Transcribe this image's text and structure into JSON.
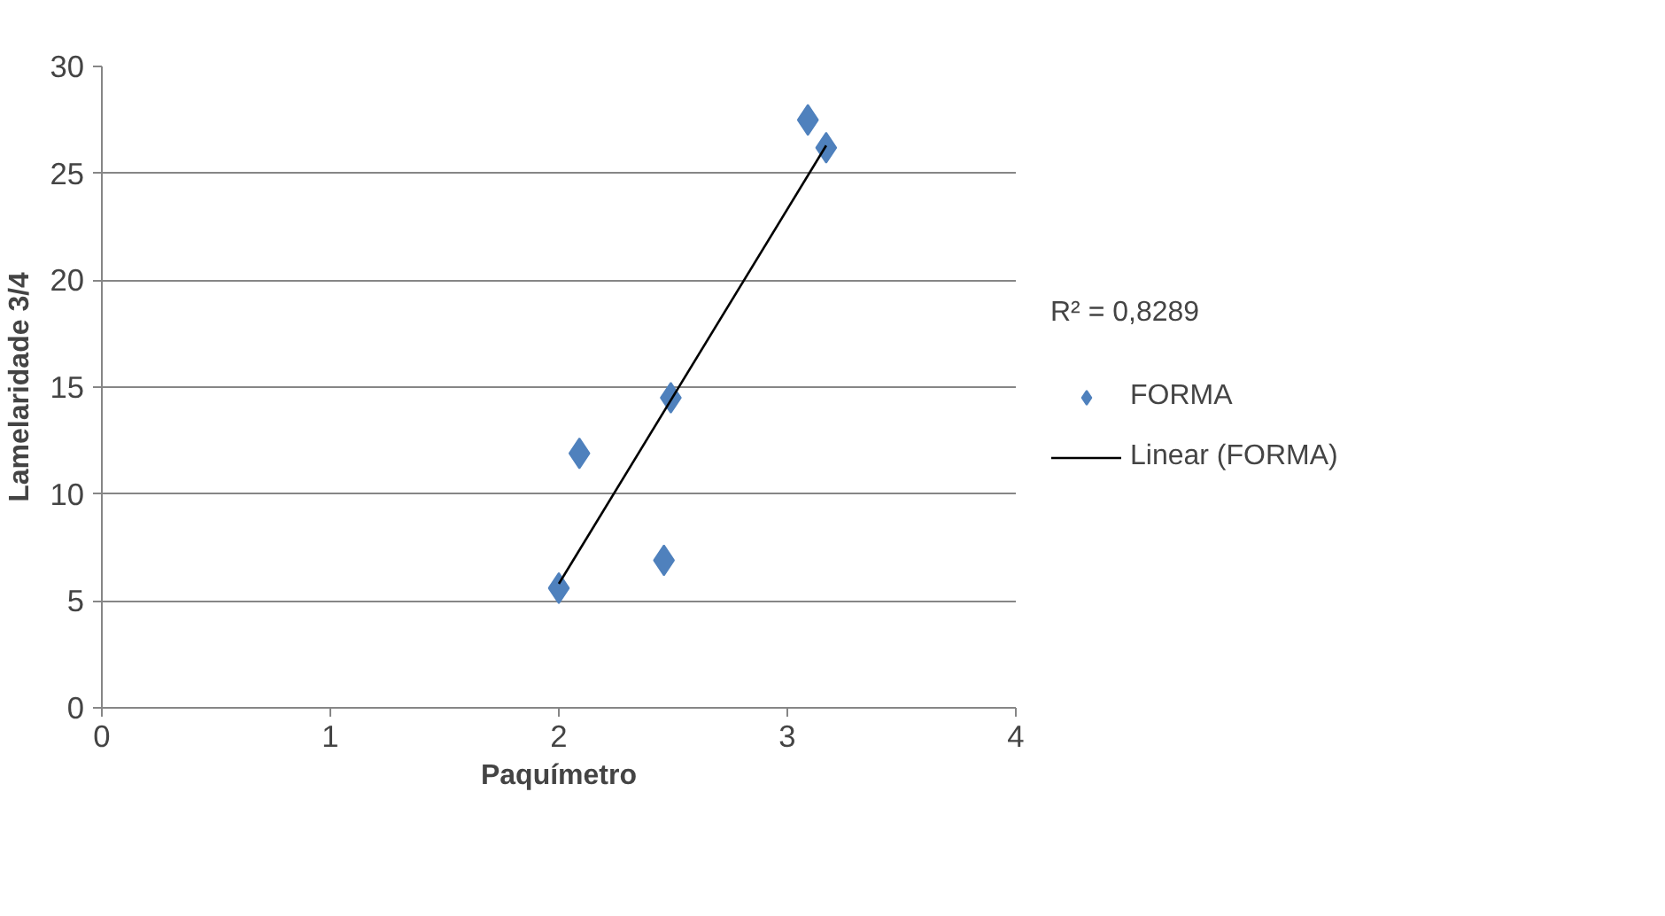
{
  "chart_data": {
    "type": "scatter",
    "xlabel": "Paquímetro",
    "ylabel": "Lamelaridade 3/4",
    "xlim": [
      0,
      4
    ],
    "xticks": [
      0,
      1,
      2,
      3,
      4
    ],
    "ylim": [
      0,
      30
    ],
    "yticks": [
      0,
      5,
      10,
      15,
      20,
      25,
      30
    ],
    "grid": "y",
    "legend": "right",
    "annotations": [
      "R² = 0,8289"
    ],
    "series": [
      {
        "name": "FORMA",
        "marker": "diamond",
        "color": "#4f81bd",
        "x": [
          2.0,
          2.09,
          2.46,
          2.49,
          3.09,
          3.17
        ],
        "values": [
          5.6,
          11.9,
          6.9,
          14.5,
          27.5,
          26.2
        ]
      },
      {
        "name": "Linear (FORMA)",
        "type": "line",
        "color": "#000000",
        "x": [
          2.0,
          3.17
        ],
        "values": [
          5.8,
          26.3
        ]
      }
    ]
  }
}
